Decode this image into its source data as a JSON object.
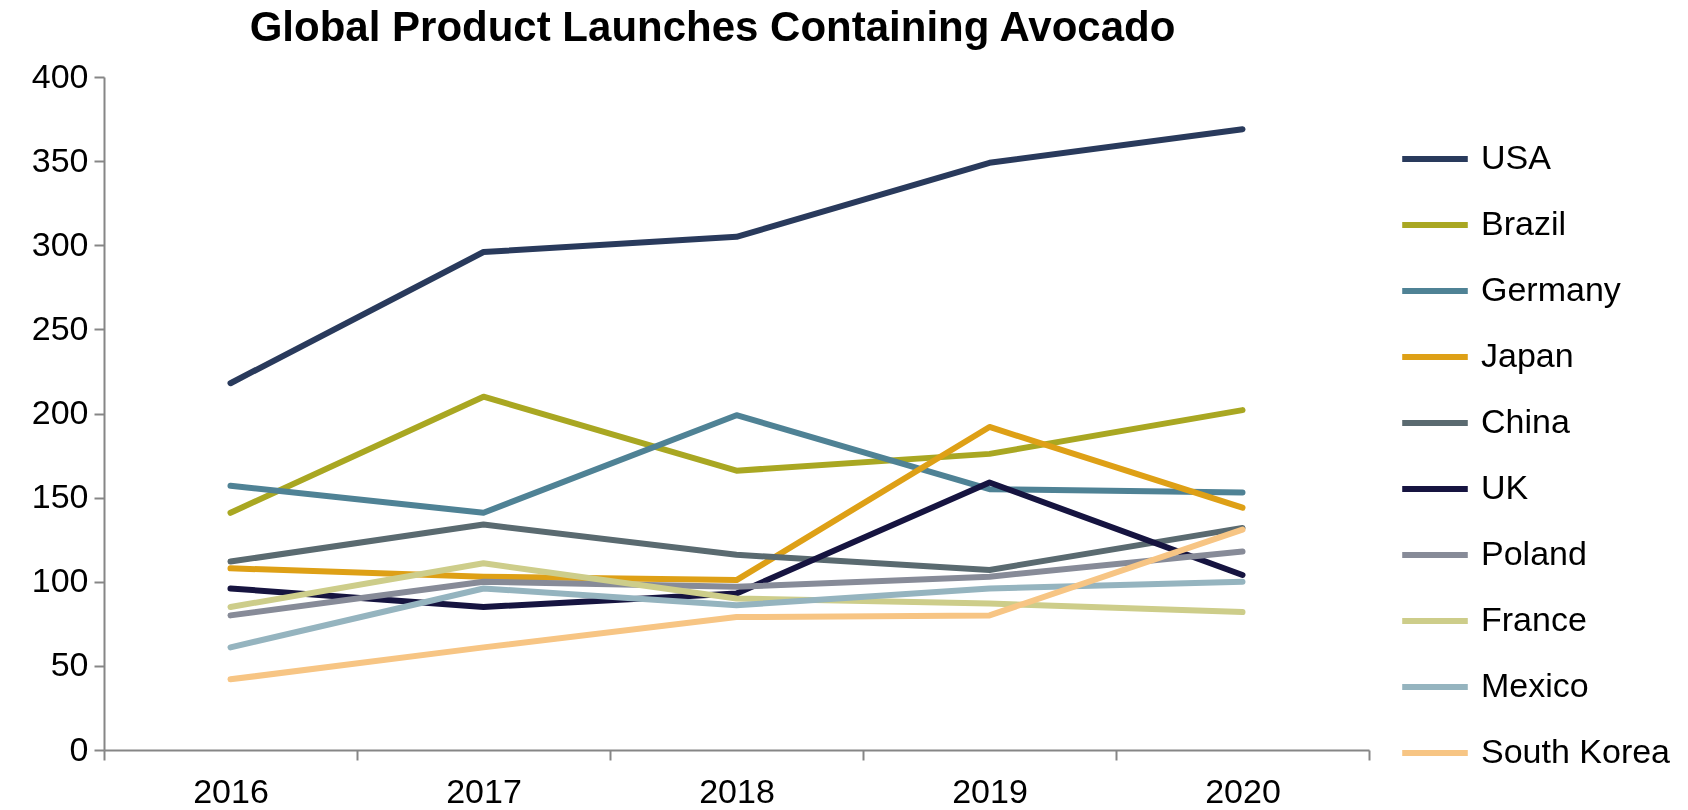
{
  "chart_data": {
    "type": "line",
    "title": "Global Product Launches Containing Avocado",
    "categories": [
      "2016",
      "2017",
      "2018",
      "2019",
      "2020"
    ],
    "ylim": [
      0,
      400
    ],
    "yticks": [
      0,
      50,
      100,
      150,
      200,
      250,
      300,
      350,
      400
    ],
    "legend": "right",
    "series": [
      {
        "name": "USA",
        "color": "#293a5c",
        "values": [
          218,
          296,
          305,
          349,
          369
        ]
      },
      {
        "name": "Brazil",
        "color": "#a9a722",
        "values": [
          141,
          210,
          166,
          176,
          202
        ]
      },
      {
        "name": "Germany",
        "color": "#4f8295",
        "values": [
          157,
          141,
          199,
          155,
          153
        ]
      },
      {
        "name": "Japan",
        "color": "#dea016",
        "values": [
          108,
          103,
          101,
          192,
          144
        ]
      },
      {
        "name": "China",
        "color": "#5a6a70",
        "values": [
          112,
          134,
          116,
          107,
          132
        ]
      },
      {
        "name": "UK",
        "color": "#161440",
        "values": [
          96,
          85,
          93,
          159,
          104
        ]
      },
      {
        "name": "Poland",
        "color": "#878b98",
        "values": [
          80,
          100,
          97,
          103,
          118
        ]
      },
      {
        "name": "France",
        "color": "#cdcd8a",
        "values": [
          85,
          111,
          90,
          87,
          82
        ]
      },
      {
        "name": "Mexico",
        "color": "#95b4bf",
        "values": [
          61,
          96,
          86,
          96,
          100
        ]
      },
      {
        "name": "South Korea",
        "color": "#f7c584",
        "values": [
          42,
          61,
          79,
          80,
          131
        ]
      }
    ]
  }
}
